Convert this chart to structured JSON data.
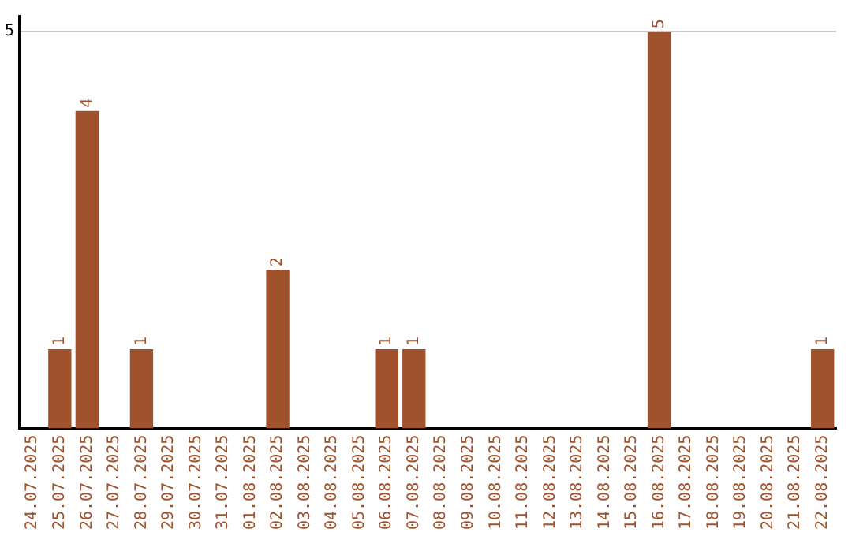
{
  "chart_data": {
    "type": "bar",
    "categories": [
      "24.07.2025",
      "25.07.2025",
      "26.07.2025",
      "27.07.2025",
      "28.07.2025",
      "29.07.2025",
      "30.07.2025",
      "31.07.2025",
      "01.08.2025",
      "02.08.2025",
      "03.08.2025",
      "04.08.2025",
      "05.08.2025",
      "06.08.2025",
      "07.08.2025",
      "08.08.2025",
      "09.08.2025",
      "10.08.2025",
      "11.08.2025",
      "12.08.2025",
      "13.08.2025",
      "14.08.2025",
      "15.08.2025",
      "16.08.2025",
      "17.08.2025",
      "18.08.2025",
      "19.08.2025",
      "20.08.2025",
      "21.08.2025",
      "22.08.2025"
    ],
    "values": [
      0,
      1,
      4,
      0,
      1,
      0,
      0,
      0,
      0,
      2,
      0,
      0,
      0,
      1,
      1,
      0,
      0,
      0,
      0,
      0,
      0,
      0,
      0,
      5,
      0,
      0,
      0,
      0,
      0,
      1
    ],
    "value_labels": [
      null,
      "1",
      "4",
      null,
      "1",
      null,
      null,
      null,
      null,
      "2",
      null,
      null,
      null,
      "1",
      "1",
      null,
      null,
      null,
      null,
      null,
      null,
      null,
      null,
      "5",
      null,
      null,
      null,
      null,
      null,
      "1"
    ],
    "color": "#a0522d",
    "ylim": [
      0,
      5.2
    ],
    "yticks": [
      5
    ],
    "grid": "y",
    "legend": false
  }
}
